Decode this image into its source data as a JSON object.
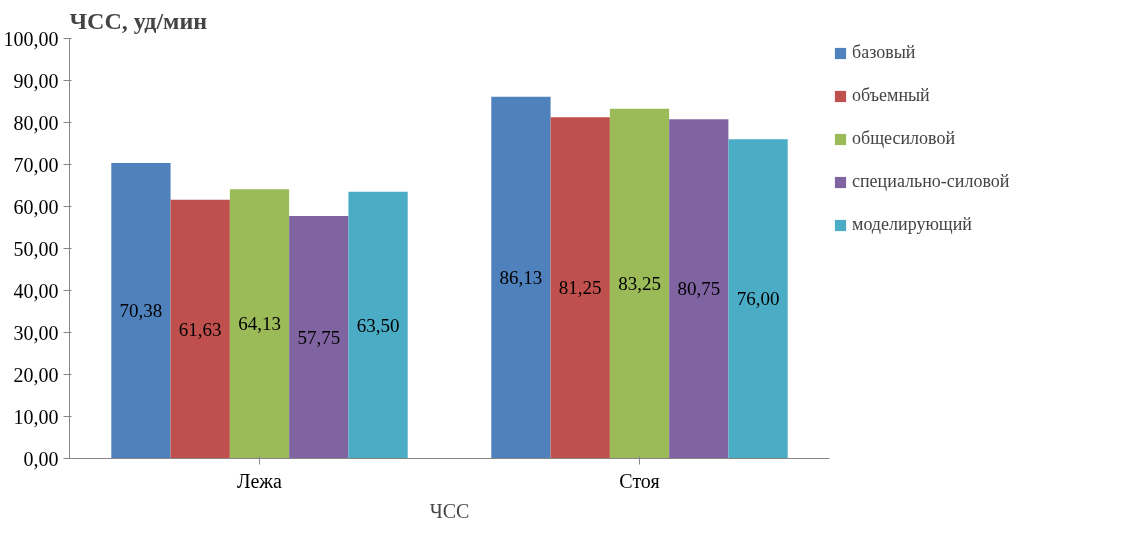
{
  "chart_data": {
    "type": "bar",
    "title": "ЧСС, уд/мин",
    "xlabel": "ЧСС",
    "categories": [
      "Лежа",
      "Стоя"
    ],
    "series": [
      {
        "name": "базовый",
        "color": "#4f81bd",
        "values": [
          70.38,
          86.13
        ],
        "value_labels": [
          "70,38",
          "86,13"
        ]
      },
      {
        "name": "объемный",
        "color": "#c0504d",
        "values": [
          61.63,
          81.25
        ],
        "value_labels": [
          "61,63",
          "81,25"
        ]
      },
      {
        "name": "общесиловой",
        "color": "#9bbb59",
        "values": [
          64.13,
          83.25
        ],
        "value_labels": [
          "64,13",
          "83,25"
        ]
      },
      {
        "name": "специально-силовой",
        "color": "#8064a2",
        "values": [
          57.75,
          80.75
        ],
        "value_labels": [
          "57,75",
          "80,75"
        ]
      },
      {
        "name": "моделирующий",
        "color": "#4bacc6",
        "values": [
          63.5,
          76.0
        ],
        "value_labels": [
          "63,50",
          "76,00"
        ]
      }
    ],
    "ylim": [
      0,
      100
    ],
    "yticks": [
      {
        "value": 0,
        "label": "0,00"
      },
      {
        "value": 10,
        "label": "10,00"
      },
      {
        "value": 20,
        "label": "20,00"
      },
      {
        "value": 30,
        "label": "30,00"
      },
      {
        "value": 40,
        "label": "40,00"
      },
      {
        "value": 50,
        "label": "50,00"
      },
      {
        "value": 60,
        "label": "60,00"
      },
      {
        "value": 70,
        "label": "70,00"
      },
      {
        "value": 80,
        "label": "80,00"
      },
      {
        "value": 90,
        "label": "90,00"
      },
      {
        "value": 100,
        "label": "100,00"
      }
    ],
    "grid": false,
    "legend": "right"
  }
}
